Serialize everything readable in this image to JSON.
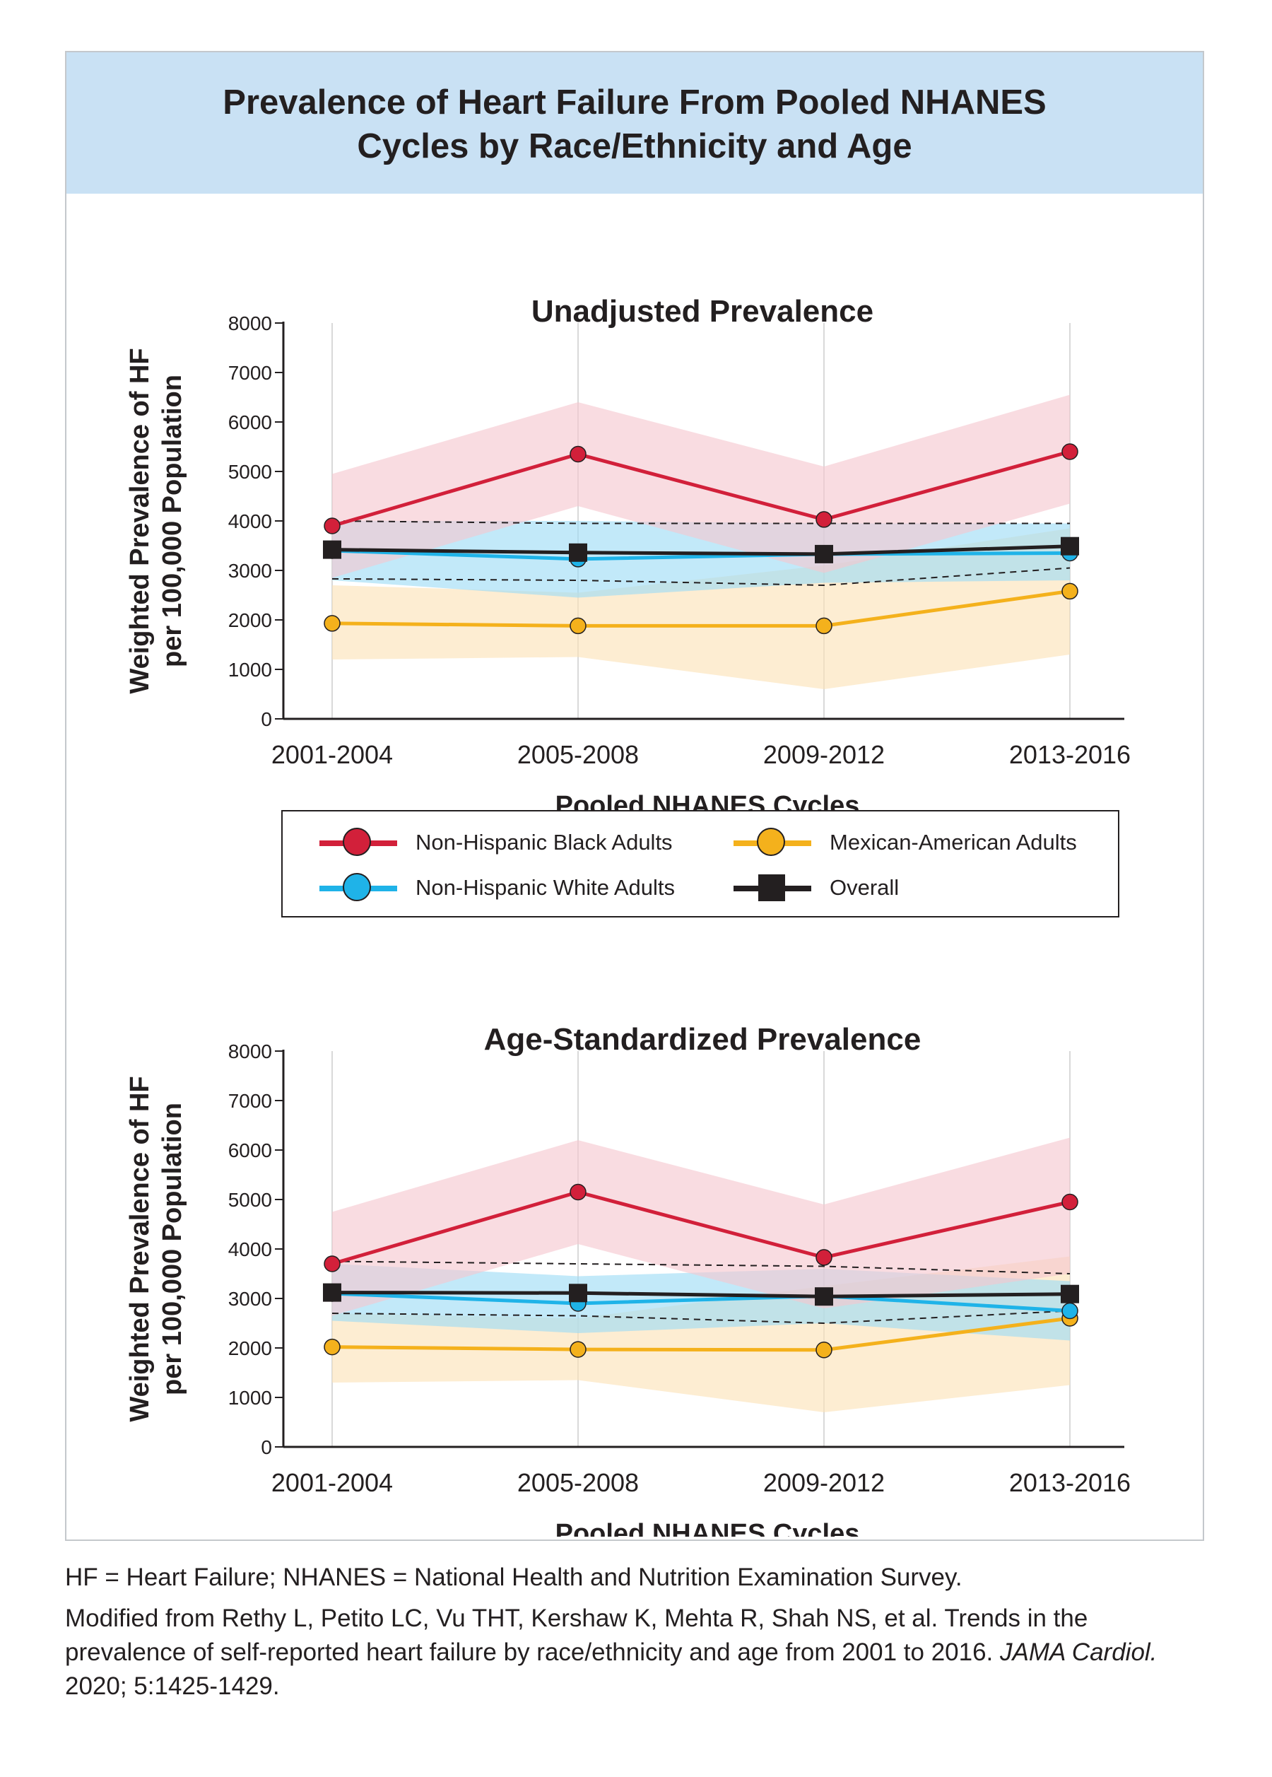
{
  "title_line1": "Prevalence of Heart Failure From Pooled NHANES",
  "title_line2": "Cycles by Race/Ethnicity and Age",
  "colors": {
    "header_bg": "#c9e1f4",
    "black_adults": "#d2203a",
    "white_adults": "#1fb3e8",
    "mexican_adults": "#f4b11c",
    "overall": "#231f20",
    "black_band": "#f5c6cf",
    "white_band": "#9cdcf6",
    "mexican_band": "#fbe2b6"
  },
  "legend": [
    {
      "key": "black",
      "label": "Non-Hispanic Black Adults",
      "color": "#d2203a",
      "marker": "circle"
    },
    {
      "key": "mexican",
      "label": "Mexican-American Adults",
      "color": "#f4b11c",
      "marker": "circle"
    },
    {
      "key": "white",
      "label": "Non-Hispanic White Adults",
      "color": "#1fb3e8",
      "marker": "circle"
    },
    {
      "key": "overall",
      "label": "Overall",
      "color": "#231f20",
      "marker": "square"
    }
  ],
  "chart_data": [
    {
      "type": "line",
      "title": "Unadjusted Prevalence",
      "xlabel": "Pooled NHANES Cycles",
      "ylabel": [
        "Weighted Prevalence of HF",
        "per 100,000 Population"
      ],
      "categories": [
        "2001-2004",
        "2005-2008",
        "2009-2012",
        "2013-2016"
      ],
      "ylim": [
        0,
        8000
      ],
      "yticks": [
        0,
        1000,
        2000,
        3000,
        4000,
        5000,
        6000,
        7000,
        8000
      ],
      "grid": "vertical",
      "series": [
        {
          "name": "Non-Hispanic Black Adults",
          "key": "black",
          "values": [
            3900,
            5350,
            4030,
            5400
          ],
          "ci_low": [
            2850,
            4300,
            2950,
            4350
          ],
          "ci_high": [
            4950,
            6400,
            5100,
            6550
          ]
        },
        {
          "name": "Non-Hispanic White Adults",
          "key": "white",
          "values": [
            3400,
            3230,
            3330,
            3350
          ],
          "ci_low": [
            2800,
            2450,
            2750,
            2800
          ],
          "ci_high": [
            4000,
            4000,
            3950,
            3950
          ]
        },
        {
          "name": "Mexican-American Adults",
          "key": "mexican",
          "values": [
            1930,
            1880,
            1880,
            2580
          ],
          "ci_low": [
            1200,
            1250,
            600,
            1300
          ],
          "ci_high": [
            2700,
            2550,
            3100,
            3850
          ]
        },
        {
          "name": "Overall",
          "key": "overall",
          "values": [
            3420,
            3360,
            3330,
            3490
          ],
          "ci_low": [
            2830,
            2800,
            2700,
            3050
          ],
          "ci_high": [
            4000,
            3950,
            3950,
            3950
          ]
        }
      ]
    },
    {
      "type": "line",
      "title": "Age-Standardized Prevalence",
      "xlabel": "Pooled NHANES Cycles",
      "ylabel": [
        "Weighted Prevalence of HF",
        "per 100,000 Population"
      ],
      "categories": [
        "2001-2004",
        "2005-2008",
        "2009-2012",
        "2013-2016"
      ],
      "ylim": [
        0,
        8000
      ],
      "yticks": [
        0,
        1000,
        2000,
        3000,
        4000,
        5000,
        6000,
        7000,
        8000
      ],
      "grid": "vertical",
      "series": [
        {
          "name": "Non-Hispanic Black Adults",
          "key": "black",
          "values": [
            3700,
            5150,
            3830,
            4950
          ],
          "ci_low": [
            2650,
            4100,
            2800,
            3500
          ],
          "ci_high": [
            4750,
            6200,
            4900,
            6250
          ]
        },
        {
          "name": "Non-Hispanic White Adults",
          "key": "white",
          "values": [
            3100,
            2900,
            3050,
            2750
          ],
          "ci_low": [
            2550,
            2300,
            2500,
            2150
          ],
          "ci_high": [
            3700,
            3450,
            3600,
            3350
          ]
        },
        {
          "name": "Mexican-American Adults",
          "key": "mexican",
          "values": [
            2020,
            1970,
            1960,
            2600
          ],
          "ci_low": [
            1300,
            1350,
            700,
            1250
          ],
          "ci_high": [
            2700,
            2600,
            3250,
            3850
          ]
        },
        {
          "name": "Overall",
          "key": "overall",
          "values": [
            3120,
            3110,
            3040,
            3090
          ],
          "ci_low": [
            2700,
            2650,
            2500,
            2750
          ],
          "ci_high": [
            3750,
            3700,
            3650,
            3500
          ]
        }
      ]
    }
  ],
  "footer": {
    "abbrev": "HF = Heart Failure; NHANES = National Health and Nutrition Examination Survey.",
    "source_text": "Modified from Rethy L, Petito LC, Vu THT, Kershaw K, Mehta R, Shah NS, et al. Trends in the prevalence of self-reported heart failure by race/ethnicity and age from 2001 to 2016.",
    "journal": "JAMA Cardiol.",
    "citation": "2020; 5:1425-1429."
  }
}
